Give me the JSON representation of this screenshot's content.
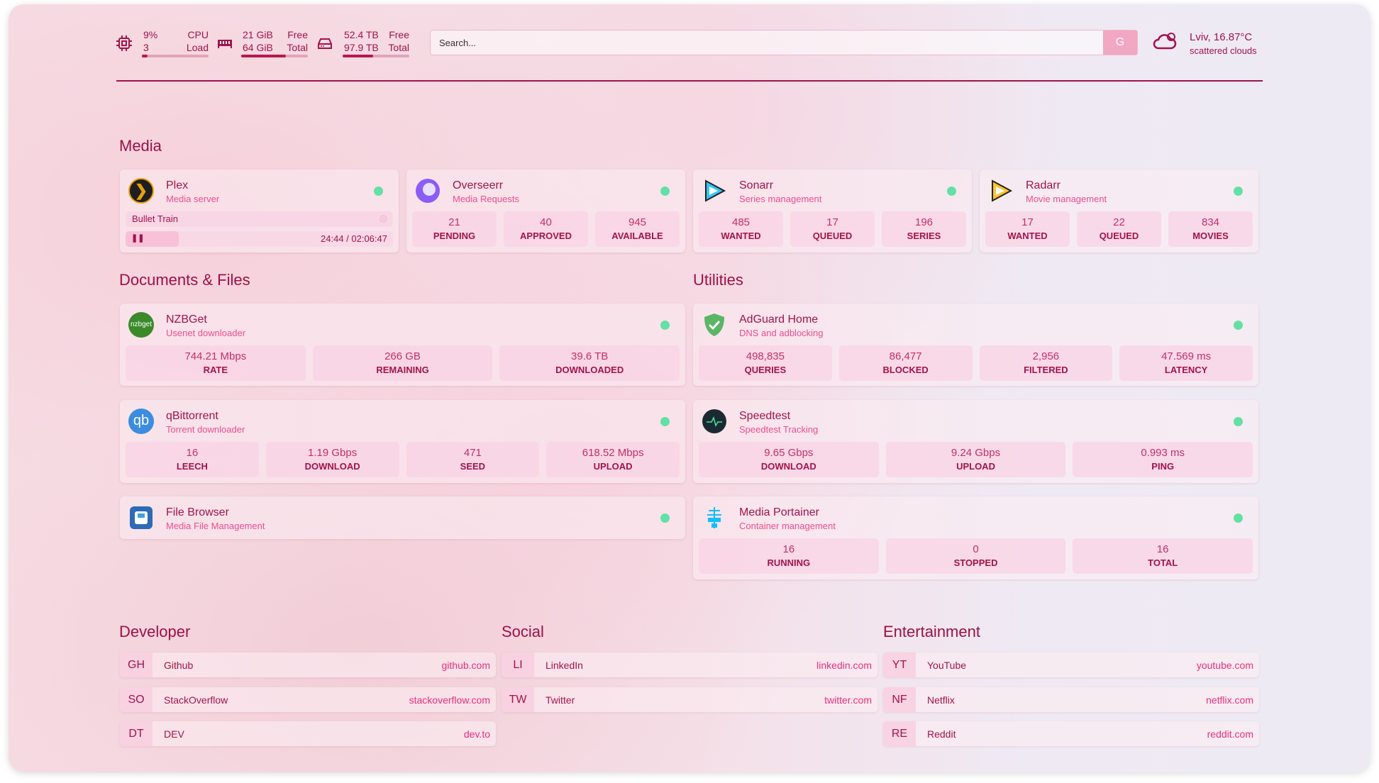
{
  "resources": {
    "cpu": {
      "icon": "cpu-icon",
      "value": "9%",
      "label": "CPU",
      "value2": "3",
      "label2": "Load",
      "usage_pct": 9
    },
    "memory": {
      "icon": "memory-icon",
      "value": "21 GiB",
      "label": "Free",
      "value2": "64 GiB",
      "label2": "Total",
      "usage_pct": 67
    },
    "disk": {
      "icon": "disk-icon",
      "value": "52.4 TB",
      "label": "Free",
      "value2": "97.9 TB",
      "label2": "Total",
      "usage_pct": 46
    }
  },
  "search": {
    "placeholder": "Search...",
    "engine": "G"
  },
  "weather": {
    "icon": "cloud-icon",
    "location": "Lviv, 16.87°C",
    "description": "scattered clouds"
  },
  "colors": {
    "accent": "#a0134a",
    "link": "#e62e7c",
    "status_ok": "#63e0a5"
  },
  "sections": {
    "media": "Media",
    "documents": "Documents & Files",
    "utilities": "Utilities",
    "developer": "Developer",
    "social": "Social",
    "entertainment": "Entertainment"
  },
  "media": {
    "plex": {
      "name": "Plex",
      "desc": "Media server",
      "now_playing": "Bullet Train",
      "time": "24:44 / 02:06:47",
      "progress_pct": 20
    },
    "overseerr": {
      "name": "Overseerr",
      "desc": "Media Requests",
      "stats": [
        {
          "v": "21",
          "l": "PENDING"
        },
        {
          "v": "40",
          "l": "APPROVED"
        },
        {
          "v": "945",
          "l": "AVAILABLE"
        }
      ]
    },
    "sonarr": {
      "name": "Sonarr",
      "desc": "Series management",
      "stats": [
        {
          "v": "485",
          "l": "WANTED"
        },
        {
          "v": "17",
          "l": "QUEUED"
        },
        {
          "v": "196",
          "l": "SERIES"
        }
      ]
    },
    "radarr": {
      "name": "Radarr",
      "desc": "Movie management",
      "stats": [
        {
          "v": "17",
          "l": "WANTED"
        },
        {
          "v": "22",
          "l": "QUEUED"
        },
        {
          "v": "834",
          "l": "MOVIES"
        }
      ]
    }
  },
  "documents": {
    "nzbget": {
      "name": "NZBGet",
      "desc": "Usenet downloader",
      "logo": "nzbget",
      "stats": [
        {
          "v": "744.21 Mbps",
          "l": "RATE"
        },
        {
          "v": "266 GB",
          "l": "REMAINING"
        },
        {
          "v": "39.6 TB",
          "l": "DOWNLOADED"
        }
      ]
    },
    "qbittorrent": {
      "name": "qBittorrent",
      "desc": "Torrent downloader",
      "logo": "qb",
      "stats": [
        {
          "v": "16",
          "l": "LEECH"
        },
        {
          "v": "1.19 Gbps",
          "l": "DOWNLOAD"
        },
        {
          "v": "471",
          "l": "SEED"
        },
        {
          "v": "618.52 Mbps",
          "l": "UPLOAD"
        }
      ]
    },
    "filebrowser": {
      "name": "File Browser",
      "desc": "Media File Management"
    }
  },
  "utilities": {
    "adguard": {
      "name": "AdGuard Home",
      "desc": "DNS and adblocking",
      "stats": [
        {
          "v": "498,835",
          "l": "QUERIES"
        },
        {
          "v": "86,477",
          "l": "BLOCKED"
        },
        {
          "v": "2,956",
          "l": "FILTERED"
        },
        {
          "v": "47.569 ms",
          "l": "LATENCY"
        }
      ]
    },
    "speedtest": {
      "name": "Speedtest",
      "desc": "Speedtest Tracking",
      "stats": [
        {
          "v": "9.65 Gbps",
          "l": "DOWNLOAD"
        },
        {
          "v": "9.24 Gbps",
          "l": "UPLOAD"
        },
        {
          "v": "0.993 ms",
          "l": "PING"
        }
      ]
    },
    "portainer": {
      "name": "Media Portainer",
      "desc": "Container management",
      "stats": [
        {
          "v": "16",
          "l": "RUNNING"
        },
        {
          "v": "0",
          "l": "STOPPED"
        },
        {
          "v": "16",
          "l": "TOTAL"
        }
      ]
    }
  },
  "bookmarks": {
    "developer": [
      {
        "abbr": "GH",
        "name": "Github",
        "url": "github.com"
      },
      {
        "abbr": "SO",
        "name": "StackOverflow",
        "url": "stackoverflow.com"
      },
      {
        "abbr": "DT",
        "name": "DEV",
        "url": "dev.to"
      }
    ],
    "social": [
      {
        "abbr": "LI",
        "name": "LinkedIn",
        "url": "linkedin.com"
      },
      {
        "abbr": "TW",
        "name": "Twitter",
        "url": "twitter.com"
      }
    ],
    "entertainment": [
      {
        "abbr": "YT",
        "name": "YouTube",
        "url": "youtube.com"
      },
      {
        "abbr": "NF",
        "name": "Netflix",
        "url": "netflix.com"
      },
      {
        "abbr": "RE",
        "name": "Reddit",
        "url": "reddit.com"
      }
    ]
  }
}
